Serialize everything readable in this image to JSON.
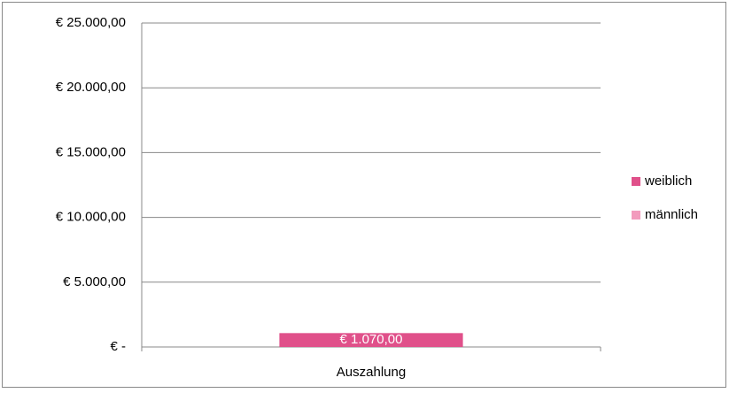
{
  "chart_data": {
    "type": "stacked_bar",
    "categories": [
      "Auszahlung"
    ],
    "series": [
      {
        "name": "weiblich",
        "color": "#e0508a",
        "values": [
          1070
        ],
        "value_labels": [
          "€ 1.070,00"
        ]
      },
      {
        "name": "männlich",
        "color": "#f29bbd",
        "values": [
          0
        ]
      }
    ],
    "ylim": [
      0,
      25000
    ],
    "yticks": [
      {
        "value": 0,
        "label": "€ -"
      },
      {
        "value": 5000,
        "label": "€ 5.000,00"
      },
      {
        "value": 10000,
        "label": "€ 10.000,00"
      },
      {
        "value": 15000,
        "label": "€ 15.000,00"
      },
      {
        "value": 20000,
        "label": "€ 20.000,00"
      },
      {
        "value": 25000,
        "label": "€ 25.000,00"
      }
    ],
    "grid": true,
    "legend": "right"
  }
}
